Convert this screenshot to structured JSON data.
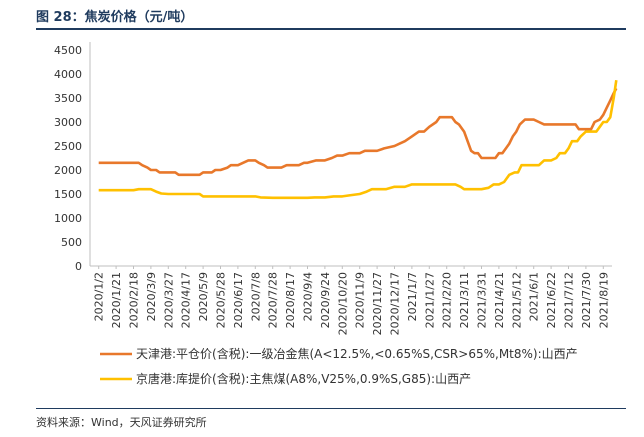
{
  "header": {
    "title": "图 28：焦炭价格（元/吨）"
  },
  "footer": {
    "source": "资料来源：Wind，天风证券研究所"
  },
  "chart_data": {
    "type": "line",
    "title": "图 28：焦炭价格（元/吨）",
    "xlabel": "",
    "ylabel": "",
    "ylim": [
      0,
      4500
    ],
    "yticks": [
      0,
      500,
      1000,
      1500,
      2000,
      2500,
      3000,
      3500,
      4000,
      4500
    ],
    "grid": false,
    "legend_position": "bottom",
    "x_tick_labels": [
      "2020/1/2",
      "2020/1/21",
      "2020/2/18",
      "2020/3/9",
      "2020/3/27",
      "2020/4/17",
      "2020/5/9",
      "2020/5/28",
      "2020/6/17",
      "2020/7/8",
      "2020/7/28",
      "2020/8/17",
      "2020/9/4",
      "2020/9/24",
      "2020/10/20",
      "2020/11/9",
      "2020/11/27",
      "2020/12/17",
      "2021/1/7",
      "2021/1/27",
      "2021/2/20",
      "2021/3/11",
      "2021/3/31",
      "2021/4/21",
      "2021/5/12",
      "2021/6/1",
      "2021/6/22",
      "2021/7/12",
      "2021/7/30",
      "2021/8/19"
    ],
    "series": [
      {
        "name": "天津港:平仓价(含税):一级冶金焦(A<12.5%,<0.65%S,CSR>65%,Mt8%):山西产",
        "color": "#E8782B",
        "points": [
          [
            0,
            2150
          ],
          [
            1,
            2150
          ],
          [
            2,
            2150
          ],
          [
            2.3,
            2150
          ],
          [
            2.5,
            2100
          ],
          [
            2.8,
            2050
          ],
          [
            3,
            2000
          ],
          [
            3.3,
            2000
          ],
          [
            3.5,
            1950
          ],
          [
            4,
            1950
          ],
          [
            4.4,
            1950
          ],
          [
            4.6,
            1900
          ],
          [
            5,
            1900
          ],
          [
            5.5,
            1900
          ],
          [
            5.8,
            1900
          ],
          [
            6,
            1950
          ],
          [
            6.5,
            1950
          ],
          [
            6.7,
            2000
          ],
          [
            7,
            2000
          ],
          [
            7.4,
            2050
          ],
          [
            7.6,
            2100
          ],
          [
            8,
            2100
          ],
          [
            8.3,
            2150
          ],
          [
            8.6,
            2200
          ],
          [
            9,
            2200
          ],
          [
            9.2,
            2150
          ],
          [
            9.5,
            2100
          ],
          [
            9.7,
            2050
          ],
          [
            10,
            2050
          ],
          [
            10.5,
            2050
          ],
          [
            10.8,
            2100
          ],
          [
            11,
            2100
          ],
          [
            11.5,
            2100
          ],
          [
            11.8,
            2150
          ],
          [
            12,
            2150
          ],
          [
            12.5,
            2200
          ],
          [
            13,
            2200
          ],
          [
            13.4,
            2250
          ],
          [
            13.7,
            2300
          ],
          [
            14,
            2300
          ],
          [
            14.4,
            2350
          ],
          [
            15,
            2350
          ],
          [
            15.3,
            2400
          ],
          [
            16,
            2400
          ],
          [
            16.4,
            2450
          ],
          [
            17,
            2500
          ],
          [
            17.3,
            2550
          ],
          [
            17.6,
            2600
          ],
          [
            18,
            2700
          ],
          [
            18.4,
            2800
          ],
          [
            18.7,
            2800
          ],
          [
            19,
            2900
          ],
          [
            19.4,
            3000
          ],
          [
            19.6,
            3100
          ],
          [
            20,
            3100
          ],
          [
            20.3,
            3100
          ],
          [
            20.5,
            3000
          ],
          [
            20.7,
            2950
          ],
          [
            21,
            2800
          ],
          [
            21.2,
            2600
          ],
          [
            21.4,
            2400
          ],
          [
            21.6,
            2350
          ],
          [
            21.8,
            2350
          ],
          [
            22,
            2250
          ],
          [
            22.5,
            2250
          ],
          [
            22.8,
            2250
          ],
          [
            23,
            2350
          ],
          [
            23.2,
            2350
          ],
          [
            23.4,
            2450
          ],
          [
            23.6,
            2550
          ],
          [
            23.8,
            2700
          ],
          [
            24,
            2800
          ],
          [
            24.2,
            2950
          ],
          [
            24.5,
            3050
          ],
          [
            24.8,
            3050
          ],
          [
            25,
            3050
          ],
          [
            25.3,
            3000
          ],
          [
            25.6,
            2950
          ],
          [
            26,
            2950
          ],
          [
            26.5,
            2950
          ],
          [
            27,
            2950
          ],
          [
            27.4,
            2950
          ],
          [
            27.6,
            2850
          ],
          [
            28,
            2850
          ],
          [
            28.3,
            2850
          ],
          [
            28.5,
            3000
          ],
          [
            28.8,
            3050
          ],
          [
            29,
            3150
          ],
          [
            29.2,
            3300
          ],
          [
            29.4,
            3450
          ],
          [
            29.6,
            3600
          ],
          [
            29.75,
            3700
          ]
        ]
      },
      {
        "name": "京唐港:库提价(含税):主焦煤(A8%,V25%,0.9%S,G85):山西产",
        "color": "#FFC000",
        "points": [
          [
            0,
            1580
          ],
          [
            1,
            1580
          ],
          [
            2,
            1580
          ],
          [
            2.3,
            1600
          ],
          [
            3,
            1600
          ],
          [
            3.3,
            1550
          ],
          [
            3.6,
            1510
          ],
          [
            4,
            1500
          ],
          [
            5,
            1500
          ],
          [
            5.5,
            1500
          ],
          [
            5.8,
            1500
          ],
          [
            6,
            1450
          ],
          [
            7,
            1450
          ],
          [
            8,
            1450
          ],
          [
            9,
            1450
          ],
          [
            9.3,
            1430
          ],
          [
            10,
            1420
          ],
          [
            11,
            1420
          ],
          [
            12,
            1420
          ],
          [
            12.4,
            1430
          ],
          [
            13,
            1430
          ],
          [
            13.5,
            1450
          ],
          [
            14,
            1450
          ],
          [
            14.4,
            1470
          ],
          [
            15,
            1500
          ],
          [
            15.4,
            1550
          ],
          [
            15.7,
            1600
          ],
          [
            16,
            1600
          ],
          [
            16.5,
            1600
          ],
          [
            16.8,
            1630
          ],
          [
            17,
            1650
          ],
          [
            17.6,
            1650
          ],
          [
            18,
            1700
          ],
          [
            18.5,
            1700
          ],
          [
            19,
            1700
          ],
          [
            20,
            1700
          ],
          [
            20.5,
            1700
          ],
          [
            20.8,
            1650
          ],
          [
            21,
            1600
          ],
          [
            21.5,
            1600
          ],
          [
            22,
            1600
          ],
          [
            22.4,
            1630
          ],
          [
            22.7,
            1700
          ],
          [
            23,
            1700
          ],
          [
            23.3,
            1750
          ],
          [
            23.6,
            1900
          ],
          [
            23.9,
            1950
          ],
          [
            24.1,
            1950
          ],
          [
            24.3,
            2100
          ],
          [
            24.6,
            2100
          ],
          [
            25,
            2100
          ],
          [
            25.3,
            2100
          ],
          [
            25.6,
            2200
          ],
          [
            26,
            2200
          ],
          [
            26.3,
            2250
          ],
          [
            26.5,
            2350
          ],
          [
            26.8,
            2350
          ],
          [
            27,
            2450
          ],
          [
            27.2,
            2600
          ],
          [
            27.5,
            2600
          ],
          [
            27.7,
            2700
          ],
          [
            28,
            2800
          ],
          [
            28.3,
            2800
          ],
          [
            28.6,
            2800
          ],
          [
            28.8,
            2900
          ],
          [
            29,
            3000
          ],
          [
            29.2,
            3000
          ],
          [
            29.4,
            3100
          ],
          [
            29.6,
            3500
          ],
          [
            29.75,
            3870
          ]
        ]
      }
    ]
  }
}
